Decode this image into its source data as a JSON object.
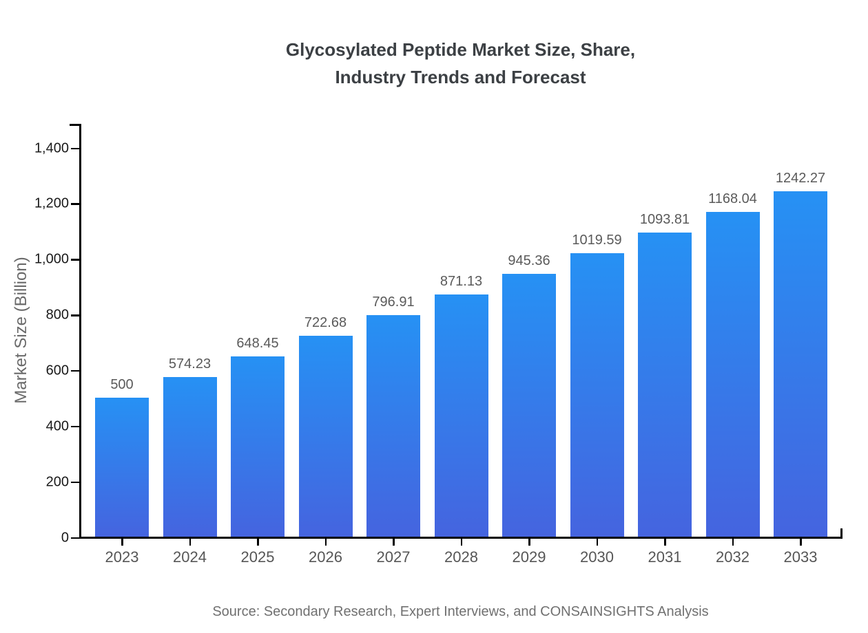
{
  "title": {
    "line1": "Glycosylated Peptide Market Size, Share,",
    "line2": "Industry Trends and Forecast"
  },
  "source": "Source: Secondary Research, Expert Interviews, and CONSAINSIGHTS Analysis",
  "chart_data": {
    "type": "bar",
    "title": "Glycosylated Peptide Market Size, Share, Industry Trends and Forecast",
    "xlabel": "",
    "ylabel": "Market Size (Billion)",
    "categories": [
      "2023",
      "2024",
      "2025",
      "2026",
      "2027",
      "2028",
      "2029",
      "2030",
      "2031",
      "2032",
      "2033"
    ],
    "values": [
      500,
      574.23,
      648.45,
      722.68,
      796.91,
      871.13,
      945.36,
      1019.59,
      1093.81,
      1168.04,
      1242.27
    ],
    "value_labels": [
      "500",
      "574.23",
      "648.45",
      "722.68",
      "796.91",
      "871.13",
      "945.36",
      "1019.59",
      "1093.81",
      "1168.04",
      "1242.27"
    ],
    "ylim": [
      0,
      1400
    ],
    "yticks": [
      0,
      200,
      400,
      600,
      800,
      1000,
      1200,
      1400
    ],
    "ytick_labels": [
      "0",
      "200",
      "400",
      "600",
      "800",
      "1,000",
      "1,200",
      "1,400"
    ],
    "grid": false,
    "legend_position": "none",
    "bar_gradient_top": "#2691f4",
    "bar_gradient_bottom": "#4564df",
    "axis_color": "#000000"
  },
  "colors": {
    "background": "#ffffff",
    "title_text": "#3c4044",
    "ytick_text": "#1a1a1a",
    "xtick_text": "#565656",
    "value_text": "#5a5a5a",
    "ylabel_text": "#6a6a6a",
    "source_text": "#707070"
  }
}
